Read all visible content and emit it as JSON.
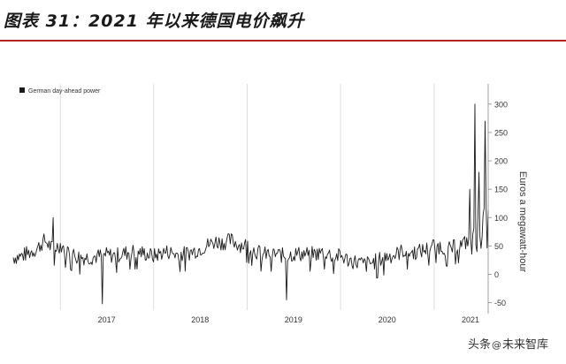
{
  "header": {
    "title": "图表 31：2021 年以来德国电价飙升"
  },
  "watermark": {
    "text_left": "头条",
    "icon": "at-icon",
    "text_right": "未来智库"
  },
  "colors": {
    "series": "#1a1a1a",
    "axis": "#888888",
    "title_rule": "#b22222"
  },
  "chart_data": {
    "type": "line",
    "title": "",
    "xlabel": "",
    "ylabel": "Euros a megawatt-hour",
    "ylim": [
      -60,
      320
    ],
    "y_axis_position": "right",
    "yticks": [
      -50,
      0,
      50,
      100,
      150,
      200,
      250,
      300
    ],
    "xticks": [
      "2017",
      "2018",
      "2019",
      "2020",
      "2021"
    ],
    "xlim": [
      "2016-07-01",
      "2021-07-31"
    ],
    "grid": "vertical",
    "legend": "top-left",
    "series": [
      {
        "name": "German day-ahead power",
        "x": [
          "2016-07-01",
          "2016-08-01",
          "2016-09-01",
          "2016-10-01",
          "2016-11-01",
          "2016-12-01",
          "2017-01-01",
          "2017-02-01",
          "2017-03-01",
          "2017-04-01",
          "2017-05-01",
          "2017-06-01",
          "2017-07-01",
          "2017-08-01",
          "2017-09-01",
          "2017-10-01",
          "2017-11-01",
          "2017-12-01",
          "2018-01-01",
          "2018-02-01",
          "2018-03-01",
          "2018-04-01",
          "2018-05-01",
          "2018-06-01",
          "2018-07-01",
          "2018-08-01",
          "2018-09-01",
          "2018-10-01",
          "2018-11-01",
          "2018-12-01",
          "2019-01-01",
          "2019-02-01",
          "2019-03-01",
          "2019-04-01",
          "2019-05-01",
          "2019-06-01",
          "2019-07-01",
          "2019-08-01",
          "2019-09-01",
          "2019-10-01",
          "2019-11-01",
          "2019-12-01",
          "2020-01-01",
          "2020-02-01",
          "2020-03-01",
          "2020-04-01",
          "2020-05-01",
          "2020-06-01",
          "2020-07-01",
          "2020-08-01",
          "2020-09-01",
          "2020-10-01",
          "2020-11-01",
          "2020-12-01",
          "2021-01-01",
          "2021-02-01",
          "2021-03-01",
          "2021-04-01",
          "2021-05-01",
          "2021-06-01",
          "2021-07-01"
        ],
        "values": [
          30,
          32,
          38,
          45,
          60,
          45,
          52,
          42,
          32,
          30,
          30,
          32,
          34,
          33,
          36,
          40,
          40,
          36,
          32,
          38,
          40,
          35,
          36,
          40,
          45,
          52,
          58,
          56,
          60,
          52,
          52,
          42,
          35,
          36,
          35,
          32,
          36,
          36,
          36,
          36,
          40,
          32,
          32,
          25,
          22,
          18,
          20,
          26,
          32,
          34,
          42,
          38,
          40,
          44,
          52,
          48,
          44,
          50,
          55,
          68,
          82
        ]
      }
    ],
    "annotations": []
  }
}
